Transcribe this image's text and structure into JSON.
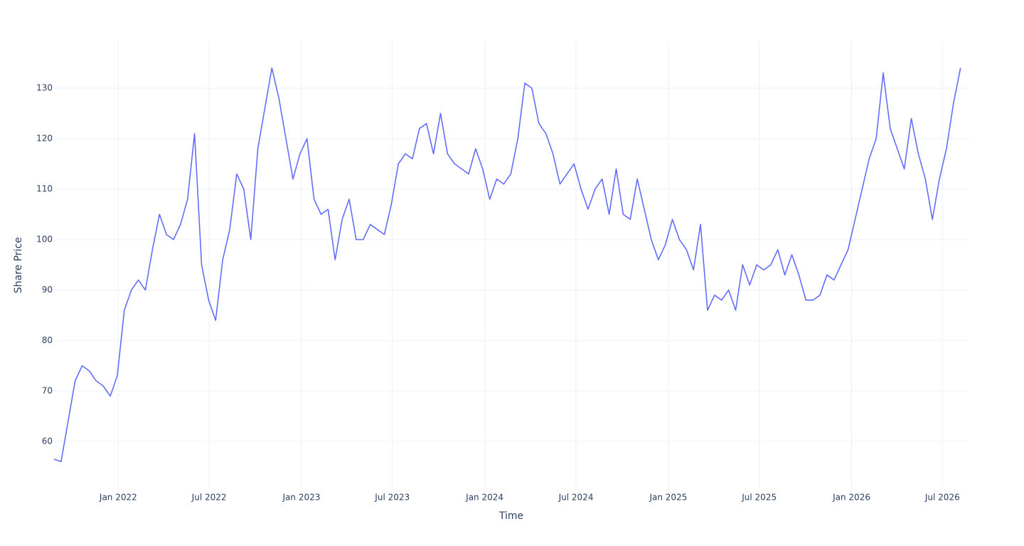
{
  "chart_data": {
    "type": "line",
    "xlabel": "Time",
    "ylabel": "Share Price",
    "x": [
      "2021-08-26",
      "2021-09-09",
      "2021-09-23",
      "2021-10-07",
      "2021-10-21",
      "2021-11-04",
      "2021-11-18",
      "2021-12-02",
      "2021-12-16",
      "2021-12-30",
      "2022-01-13",
      "2022-01-27",
      "2022-02-10",
      "2022-02-24",
      "2022-03-10",
      "2022-03-24",
      "2022-04-07",
      "2022-04-21",
      "2022-05-05",
      "2022-05-19",
      "2022-06-02",
      "2022-06-16",
      "2022-06-30",
      "2022-07-14",
      "2022-07-28",
      "2022-08-11",
      "2022-08-25",
      "2022-09-08",
      "2022-09-22",
      "2022-10-06",
      "2022-10-20",
      "2022-11-03",
      "2022-11-17",
      "2022-12-01",
      "2022-12-15",
      "2022-12-29",
      "2023-01-12",
      "2023-01-26",
      "2023-02-09",
      "2023-02-23",
      "2023-03-09",
      "2023-03-23",
      "2023-04-06",
      "2023-04-20",
      "2023-05-04",
      "2023-05-18",
      "2023-06-01",
      "2023-06-15",
      "2023-06-29",
      "2023-07-13",
      "2023-07-27",
      "2023-08-10",
      "2023-08-24",
      "2023-09-07",
      "2023-09-21",
      "2023-10-05",
      "2023-10-19",
      "2023-11-02",
      "2023-11-16",
      "2023-11-30",
      "2023-12-14",
      "2023-12-28",
      "2024-01-11",
      "2024-01-25",
      "2024-02-08",
      "2024-02-22",
      "2024-03-07",
      "2024-03-21",
      "2024-04-04",
      "2024-04-18",
      "2024-05-02",
      "2024-05-16",
      "2024-05-30",
      "2024-06-13",
      "2024-06-27",
      "2024-07-11",
      "2024-07-25",
      "2024-08-08",
      "2024-08-22",
      "2024-09-05",
      "2024-09-19",
      "2024-10-03",
      "2024-10-17",
      "2024-10-31",
      "2024-11-14",
      "2024-11-28",
      "2024-12-12",
      "2024-12-26",
      "2025-01-09",
      "2025-01-23",
      "2025-02-06",
      "2025-02-20",
      "2025-03-06",
      "2025-03-20",
      "2025-04-03",
      "2025-04-17",
      "2025-05-01",
      "2025-05-15",
      "2025-05-29",
      "2025-06-12",
      "2025-06-26",
      "2025-07-10",
      "2025-07-24",
      "2025-08-07",
      "2025-08-21",
      "2025-09-04",
      "2025-09-18",
      "2025-10-02",
      "2025-10-16",
      "2025-10-30",
      "2025-11-13",
      "2025-11-27",
      "2025-12-11",
      "2025-12-25",
      "2026-01-08",
      "2026-01-22",
      "2026-02-05",
      "2026-02-19",
      "2026-03-05",
      "2026-03-19",
      "2026-04-02",
      "2026-04-16",
      "2026-04-30",
      "2026-05-14",
      "2026-05-28",
      "2026-06-11",
      "2026-06-25",
      "2026-07-09",
      "2026-07-23",
      "2026-08-06"
    ],
    "series": [
      {
        "name": "Share Price",
        "color": "#636efa",
        "values": [
          56.5,
          56,
          64,
          72,
          75,
          74,
          72,
          71,
          69,
          73,
          86,
          90,
          92,
          90,
          98,
          105,
          101,
          100,
          103,
          108,
          121,
          95,
          88,
          84,
          96,
          102,
          113,
          110,
          100,
          118,
          126,
          134,
          128,
          120,
          112,
          117,
          120,
          108,
          105,
          106,
          96,
          104,
          108,
          100,
          100,
          103,
          102,
          101,
          107,
          115,
          117,
          116,
          122,
          123,
          117,
          125,
          117,
          115,
          114,
          113,
          118,
          114,
          108,
          112,
          111,
          113,
          120,
          131,
          130,
          123,
          121,
          117,
          111,
          113,
          115,
          110,
          106,
          110,
          112,
          105,
          114,
          105,
          104,
          112,
          106,
          100,
          96,
          99,
          104,
          100,
          98,
          94,
          103,
          86,
          89,
          88,
          90,
          86,
          95,
          91,
          95,
          94,
          95,
          98,
          93,
          97,
          93,
          88,
          88,
          89,
          93,
          92,
          95,
          98,
          104,
          110,
          116,
          120,
          133,
          122,
          118,
          114,
          124,
          117,
          112,
          104,
          112,
          118,
          127,
          134
        ]
      }
    ],
    "xlim": [
      "2021-08-26",
      "2026-08-22"
    ],
    "xticks": [
      {
        "value": "2022-01-01",
        "label": "Jan 2022"
      },
      {
        "value": "2022-07-01",
        "label": "Jul 2022"
      },
      {
        "value": "2023-01-01",
        "label": "Jan 2023"
      },
      {
        "value": "2023-07-01",
        "label": "Jul 2023"
      },
      {
        "value": "2024-01-01",
        "label": "Jan 2024"
      },
      {
        "value": "2024-07-01",
        "label": "Jul 2024"
      },
      {
        "value": "2025-01-01",
        "label": "Jan 2025"
      },
      {
        "value": "2025-07-01",
        "label": "Jul 2025"
      },
      {
        "value": "2026-01-01",
        "label": "Jan 2026"
      },
      {
        "value": "2026-07-01",
        "label": "Jul 2026"
      }
    ],
    "ylim": [
      50.7,
      139.3
    ],
    "yticks": [
      60,
      70,
      80,
      90,
      100,
      110,
      120,
      130
    ],
    "grid": true
  }
}
